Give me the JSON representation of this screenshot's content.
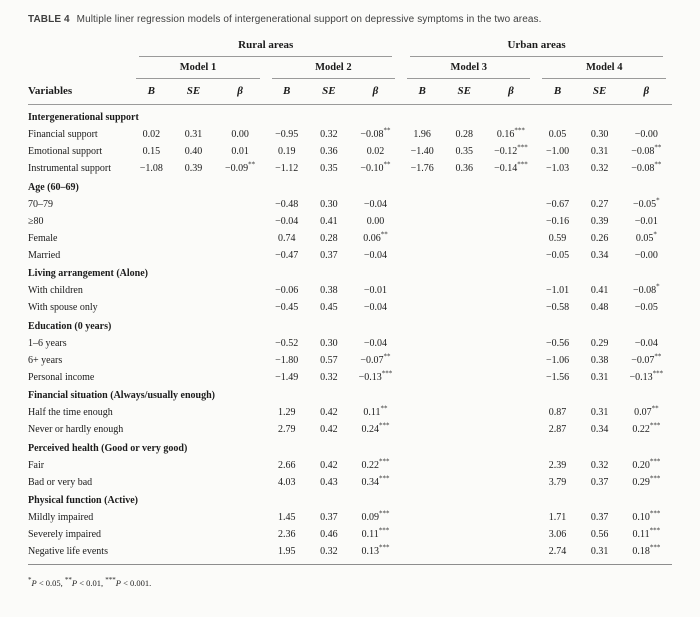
{
  "title": {
    "label": "TABLE 4",
    "text": "Multiple liner regression models of intergenerational support on depressive symptoms in the two areas."
  },
  "table": {
    "variables_header": "Variables",
    "area_groups": [
      {
        "label": "Rural areas",
        "models": [
          "Model 1",
          "Model 2"
        ]
      },
      {
        "label": "Urban areas",
        "models": [
          "Model 3",
          "Model 4"
        ]
      }
    ],
    "stat_headers": [
      "B",
      "SE",
      "β"
    ],
    "rows": [
      {
        "type": "section",
        "label": "Intergenerational support"
      },
      {
        "type": "data",
        "label": "Financial support",
        "values": [
          "0.02",
          "0.31",
          "0.00",
          "−0.95",
          "0.32",
          "−0.08**",
          "1.96",
          "0.28",
          "0.16***",
          "0.05",
          "0.30",
          "−0.00"
        ]
      },
      {
        "type": "data",
        "label": "Emotional support",
        "values": [
          "0.15",
          "0.40",
          "0.01",
          "0.19",
          "0.36",
          "0.02",
          "−1.40",
          "0.35",
          "−0.12***",
          "−1.00",
          "0.31",
          "−0.08**"
        ]
      },
      {
        "type": "data",
        "label": "Instrumental support",
        "values": [
          "−1.08",
          "0.39",
          "−0.09**",
          "−1.12",
          "0.35",
          "−0.10**",
          "−1.76",
          "0.36",
          "−0.14***",
          "−1.03",
          "0.32",
          "−0.08**"
        ]
      },
      {
        "type": "section",
        "label": "Age (60–69)"
      },
      {
        "type": "data",
        "label": "70–79",
        "values": [
          "",
          "",
          "",
          "−0.48",
          "0.30",
          "−0.04",
          "",
          "",
          "",
          "−0.67",
          "0.27",
          "−0.05*"
        ]
      },
      {
        "type": "data",
        "label": "≥80",
        "values": [
          "",
          "",
          "",
          "−0.04",
          "0.41",
          "0.00",
          "",
          "",
          "",
          "−0.16",
          "0.39",
          "−0.01"
        ]
      },
      {
        "type": "data",
        "label": "Female",
        "values": [
          "",
          "",
          "",
          "0.74",
          "0.28",
          "0.06**",
          "",
          "",
          "",
          "0.59",
          "0.26",
          "0.05*"
        ]
      },
      {
        "type": "data",
        "label": "Married",
        "values": [
          "",
          "",
          "",
          "−0.47",
          "0.37",
          "−0.04",
          "",
          "",
          "",
          "−0.05",
          "0.34",
          "−0.00"
        ]
      },
      {
        "type": "section",
        "label": "Living arrangement (Alone)"
      },
      {
        "type": "data",
        "label": "With children",
        "values": [
          "",
          "",
          "",
          "−0.06",
          "0.38",
          "−0.01",
          "",
          "",
          "",
          "−1.01",
          "0.41",
          "−0.08*"
        ]
      },
      {
        "type": "data",
        "label": "With spouse only",
        "values": [
          "",
          "",
          "",
          "−0.45",
          "0.45",
          "−0.04",
          "",
          "",
          "",
          "−0.58",
          "0.48",
          "−0.05"
        ]
      },
      {
        "type": "section",
        "label": "Education (0 years)"
      },
      {
        "type": "data",
        "label": "1–6 years",
        "values": [
          "",
          "",
          "",
          "−0.52",
          "0.30",
          "−0.04",
          "",
          "",
          "",
          "−0.56",
          "0.29",
          "−0.04"
        ]
      },
      {
        "type": "data",
        "label": "6+ years",
        "values": [
          "",
          "",
          "",
          "−1.80",
          "0.57",
          "−0.07**",
          "",
          "",
          "",
          "−1.06",
          "0.38",
          "−0.07**"
        ]
      },
      {
        "type": "data",
        "label": "Personal income",
        "values": [
          "",
          "",
          "",
          "−1.49",
          "0.32",
          "−0.13***",
          "",
          "",
          "",
          "−1.56",
          "0.31",
          "−0.13***"
        ]
      },
      {
        "type": "section",
        "label": "Financial situation (Always/usually enough)"
      },
      {
        "type": "data",
        "label": "Half the time enough",
        "values": [
          "",
          "",
          "",
          "1.29",
          "0.42",
          "0.11**",
          "",
          "",
          "",
          "0.87",
          "0.31",
          "0.07**"
        ]
      },
      {
        "type": "data",
        "label": "Never or hardly enough",
        "values": [
          "",
          "",
          "",
          "2.79",
          "0.42",
          "0.24***",
          "",
          "",
          "",
          "2.87",
          "0.34",
          "0.22***"
        ]
      },
      {
        "type": "section",
        "label": "Perceived health (Good or very good)"
      },
      {
        "type": "data",
        "label": "Fair",
        "values": [
          "",
          "",
          "",
          "2.66",
          "0.42",
          "0.22***",
          "",
          "",
          "",
          "2.39",
          "0.32",
          "0.20***"
        ]
      },
      {
        "type": "data",
        "label": "Bad or very bad",
        "values": [
          "",
          "",
          "",
          "4.03",
          "0.43",
          "0.34***",
          "",
          "",
          "",
          "3.79",
          "0.37",
          "0.29***"
        ]
      },
      {
        "type": "section",
        "label": "Physical function (Active)"
      },
      {
        "type": "data",
        "label": "Mildly impaired",
        "values": [
          "",
          "",
          "",
          "1.45",
          "0.37",
          "0.09***",
          "",
          "",
          "",
          "1.71",
          "0.37",
          "0.10***"
        ]
      },
      {
        "type": "data",
        "label": "Severely impaired",
        "values": [
          "",
          "",
          "",
          "2.36",
          "0.46",
          "0.11***",
          "",
          "",
          "",
          "3.06",
          "0.56",
          "0.11***"
        ]
      },
      {
        "type": "data",
        "label": "Negative life events",
        "values": [
          "",
          "",
          "",
          "1.95",
          "0.32",
          "0.13***",
          "",
          "",
          "",
          "2.74",
          "0.31",
          "0.18***"
        ]
      }
    ],
    "footnote": "*P < 0.05, **P < 0.01, ***P < 0.001."
  }
}
